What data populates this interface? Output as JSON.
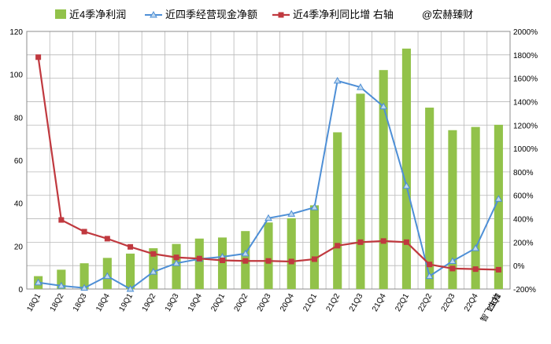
{
  "chart_data": {
    "type": "bar",
    "categories": [
      "18Q1",
      "18Q2",
      "18Q3",
      "18Q4",
      "19Q1",
      "19Q2",
      "19Q3",
      "19Q4",
      "20Q1",
      "20Q2",
      "20Q3",
      "20Q4",
      "21Q1",
      "21Q2",
      "21Q3",
      "21Q4",
      "22Q1",
      "22Q2",
      "22Q3",
      "22Q4",
      "23Q1"
    ],
    "series": [
      {
        "name": "近4季净利润",
        "type": "bar",
        "axis": "left",
        "values": [
          6,
          9,
          12,
          14.5,
          16.5,
          19,
          21,
          23.5,
          24,
          27,
          31,
          33,
          39,
          73,
          91,
          102,
          112,
          84.5,
          74,
          75.5,
          76.5
        ]
      },
      {
        "name": "近四季经营现金净额",
        "type": "line",
        "axis": "left",
        "values": [
          3,
          1.5,
          0.5,
          6,
          0,
          8,
          12,
          14,
          15,
          16.5,
          33,
          35,
          38,
          97,
          94,
          85,
          48,
          6,
          13,
          19,
          42
        ]
      },
      {
        "name": "近4季净利同比增 右轴",
        "type": "line",
        "axis": "right",
        "values": [
          1780,
          390,
          290,
          230,
          160,
          100,
          70,
          60,
          45,
          40,
          40,
          35,
          55,
          170,
          200,
          210,
          200,
          10,
          -25,
          -30,
          -35
        ]
      }
    ],
    "annotation": "@宏赫臻财",
    "xaxis_extra_label": "智飞生物",
    "ylim_left": [
      0,
      120
    ],
    "ylim_right": [
      -200,
      2000
    ],
    "yticks_left": [
      "0",
      "20",
      "40",
      "60",
      "80",
      "100",
      "120"
    ],
    "yticks_right": [
      "-200%",
      "0%",
      "200%",
      "400%",
      "600%",
      "800%",
      "1000%",
      "1200%",
      "1400%",
      "1600%",
      "1800%",
      "2000%"
    ],
    "grid": true,
    "legend_position": "top",
    "colors": {
      "bar": "#92c24a",
      "cash_line": "#4e8fd6",
      "growth_line": "#c0393f",
      "grid": "#b8b8b8"
    }
  }
}
